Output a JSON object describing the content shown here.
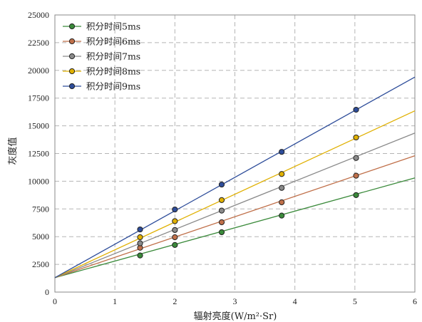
{
  "chart_data": {
    "type": "scatter",
    "xlabel": "辐射亮度(W/m²·Sr)",
    "ylabel": "灰度值",
    "xlim": [
      0,
      6
    ],
    "ylim": [
      0,
      25000
    ],
    "x_ticks": [
      "0",
      "1",
      "2",
      "3",
      "4",
      "5",
      "6"
    ],
    "y_ticks": [
      "0",
      "2500",
      "5000",
      "7500",
      "10000",
      "12500",
      "15000",
      "17500",
      "20000",
      "22500",
      "25000"
    ],
    "grid": true,
    "legend_position": "top-left",
    "series": [
      {
        "name": "积分时间5ms",
        "color": "#3a8a3a",
        "x": [
          1.42,
          2.0,
          2.78,
          3.78,
          5.02
        ],
        "y": [
          3300,
          4250,
          5400,
          6900,
          8750
        ],
        "fit_line": {
          "x": [
            0,
            6
          ],
          "y": [
            1300,
            10300
          ]
        }
      },
      {
        "name": "积分时间6ms",
        "color": "#c0704a",
        "x": [
          1.42,
          2.0,
          2.78,
          3.78,
          5.02
        ],
        "y": [
          4000,
          4950,
          6300,
          8100,
          10500
        ],
        "fit_line": {
          "x": [
            0,
            6
          ],
          "y": [
            1300,
            12300
          ]
        }
      },
      {
        "name": "积分时间7ms",
        "color": "#8a8a8a",
        "x": [
          1.42,
          2.0,
          2.78,
          3.78,
          5.02
        ],
        "y": [
          4400,
          5600,
          7350,
          9400,
          12100
        ],
        "fit_line": {
          "x": [
            0,
            6
          ],
          "y": [
            1300,
            14350
          ]
        }
      },
      {
        "name": "积分时间8ms",
        "color": "#e0b000",
        "x": [
          1.42,
          2.0,
          2.78,
          3.78,
          5.02
        ],
        "y": [
          4950,
          6400,
          8300,
          10650,
          13950
        ],
        "fit_line": {
          "x": [
            0,
            6
          ],
          "y": [
            1300,
            16350
          ]
        }
      },
      {
        "name": "积分时间9ms",
        "color": "#2e4d9a",
        "x": [
          1.42,
          2.0,
          2.78,
          3.78,
          5.02
        ],
        "y": [
          5650,
          7450,
          9700,
          12650,
          16450
        ],
        "fit_line": {
          "x": [
            0,
            6
          ],
          "y": [
            1300,
            19400
          ]
        }
      }
    ]
  }
}
